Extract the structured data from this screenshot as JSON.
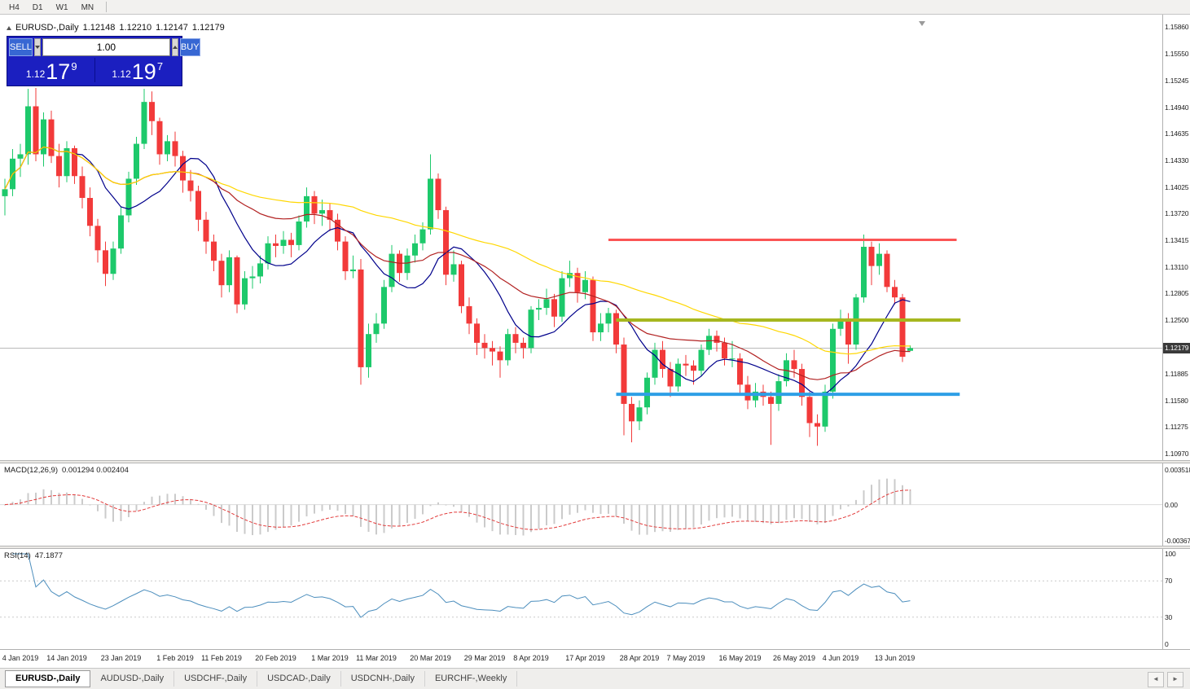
{
  "toolbar": {
    "timeframes": [
      "H4",
      "D1",
      "W1",
      "MN"
    ]
  },
  "chart_header": {
    "instrument": "EURUSD-,Daily",
    "open": "1.12148",
    "high": "1.12210",
    "low": "1.12147",
    "close": "1.12179"
  },
  "trade_panel": {
    "sell_label": "SELL",
    "buy_label": "BUY",
    "volume": "1.00",
    "sell_price": {
      "base": "1.12",
      "pips": "17",
      "point": "9"
    },
    "buy_price": {
      "base": "1.12",
      "pips": "19",
      "point": "7"
    }
  },
  "colors": {
    "bull": "#1dc96b",
    "bear": "#f23a3a",
    "current_price_line": "#b9b9b9",
    "price_badge_bg": "#3a3a3a",
    "macd_histogram": "#cbcbcb",
    "macd_signal": "#e23b3b",
    "rsi_line": "#4c8ebd",
    "indicator_level": "#c9c9c9",
    "trade_panel_bg": "#1b1fc0",
    "trade_panel_button": "#3767d3"
  },
  "chart_data": {
    "type": "candlestick",
    "title": "EURUSD-,Daily",
    "current_price": 1.12179,
    "price_axis": {
      "min": 1.1097,
      "max": 1.1586,
      "current_price_label": "1.12179",
      "ticks": [
        "1.15860",
        "1.15550",
        "1.15245",
        "1.14940",
        "1.14635",
        "1.14330",
        "1.14025",
        "1.13720",
        "1.13415",
        "1.13110",
        "1.12805",
        "1.12500",
        "1.11885",
        "1.11580",
        "1.11275",
        "1.10970"
      ]
    },
    "moving_averages": [
      {
        "period": 10,
        "color": "#00008b"
      },
      {
        "period": 25,
        "color": "#b22222"
      },
      {
        "period": 50,
        "color": "#ffd700"
      }
    ],
    "hlines": [
      {
        "name": "resistance-line",
        "price": 1.1342,
        "color": "#fb5555",
        "width": 3,
        "from_index": 78,
        "to_index": 123
      },
      {
        "name": "pivot-line",
        "price": 1.125,
        "color": "#a6b71f",
        "width": 4,
        "from_index": 79,
        "to_index": 123.5
      },
      {
        "name": "support-line",
        "price": 1.1165,
        "color": "#2e9fe6",
        "width": 4,
        "from_index": 79,
        "to_index": 123.4
      }
    ],
    "date_ticks": [
      {
        "label": "4 Jan 2019",
        "index": 2
      },
      {
        "label": "14 Jan 2019",
        "index": 8
      },
      {
        "label": "23 Jan 2019",
        "index": 15
      },
      {
        "label": "1 Feb 2019",
        "index": 22
      },
      {
        "label": "11 Feb 2019",
        "index": 28
      },
      {
        "label": "20 Feb 2019",
        "index": 35
      },
      {
        "label": "1 Mar 2019",
        "index": 42
      },
      {
        "label": "11 Mar 2019",
        "index": 48
      },
      {
        "label": "20 Mar 2019",
        "index": 55
      },
      {
        "label": "29 Mar 2019",
        "index": 62
      },
      {
        "label": "8 Apr 2019",
        "index": 68
      },
      {
        "label": "17 Apr 2019",
        "index": 75
      },
      {
        "label": "28 Apr 2019",
        "index": 82
      },
      {
        "label": "7 May 2019",
        "index": 88
      },
      {
        "label": "16 May 2019",
        "index": 95
      },
      {
        "label": "26 May 2019",
        "index": 102
      },
      {
        "label": "4 Jun 2019",
        "index": 108
      },
      {
        "label": "13 Jun 2019",
        "index": 115
      }
    ],
    "indicators": {
      "macd": {
        "label": "MACD(12,26,9)",
        "values_label": "0.001294 0.002404",
        "fast": 12,
        "slow": 26,
        "signal": 9,
        "scale_ticks": [
          "0.003518",
          "0.00",
          "-0.00367"
        ]
      },
      "rsi": {
        "label": "RSI(14)",
        "value_label": "47.1877",
        "period": 14,
        "levels": [
          70,
          30
        ],
        "scale_ticks": [
          "100",
          "70",
          "30",
          "0"
        ]
      }
    },
    "candles": [
      [
        1.1392,
        1.1412,
        1.137,
        1.14
      ],
      [
        1.14,
        1.1446,
        1.1392,
        1.1435
      ],
      [
        1.1435,
        1.1452,
        1.1414,
        1.144
      ],
      [
        1.144,
        1.1515,
        1.1428,
        1.1495
      ],
      [
        1.1495,
        1.1516,
        1.1432,
        1.144
      ],
      [
        1.144,
        1.1488,
        1.1426,
        1.148
      ],
      [
        1.148,
        1.149,
        1.143,
        1.1438
      ],
      [
        1.1438,
        1.1452,
        1.1402,
        1.1415
      ],
      [
        1.1415,
        1.1455,
        1.1408,
        1.1447
      ],
      [
        1.1447,
        1.145,
        1.1406,
        1.1415
      ],
      [
        1.1415,
        1.1426,
        1.1378,
        1.139
      ],
      [
        1.139,
        1.1402,
        1.1346,
        1.1358
      ],
      [
        1.1358,
        1.1366,
        1.1316,
        1.133
      ],
      [
        1.133,
        1.134,
        1.1289,
        1.1303
      ],
      [
        1.1303,
        1.134,
        1.1296,
        1.1332
      ],
      [
        1.1332,
        1.138,
        1.1326,
        1.137
      ],
      [
        1.137,
        1.142,
        1.1362,
        1.1412
      ],
      [
        1.1412,
        1.146,
        1.1405,
        1.1452
      ],
      [
        1.1452,
        1.1515,
        1.1446,
        1.15
      ],
      [
        1.15,
        1.1512,
        1.1462,
        1.1478
      ],
      [
        1.1478,
        1.1482,
        1.1428,
        1.144
      ],
      [
        1.144,
        1.1462,
        1.1432,
        1.1455
      ],
      [
        1.1455,
        1.1466,
        1.1426,
        1.1438
      ],
      [
        1.1438,
        1.1444,
        1.1396,
        1.141
      ],
      [
        1.141,
        1.1422,
        1.1386,
        1.1398
      ],
      [
        1.1398,
        1.1404,
        1.1352,
        1.1365
      ],
      [
        1.1365,
        1.1374,
        1.1326,
        1.134
      ],
      [
        1.134,
        1.1348,
        1.1306,
        1.1318
      ],
      [
        1.1318,
        1.1326,
        1.1276,
        1.129
      ],
      [
        1.129,
        1.133,
        1.1282,
        1.1322
      ],
      [
        1.1322,
        1.1324,
        1.1258,
        1.1268
      ],
      [
        1.1268,
        1.1306,
        1.1262,
        1.1298
      ],
      [
        1.1298,
        1.1312,
        1.1286,
        1.13
      ],
      [
        1.13,
        1.1324,
        1.1292,
        1.1315
      ],
      [
        1.1315,
        1.1346,
        1.1308,
        1.1338
      ],
      [
        1.1338,
        1.1348,
        1.1322,
        1.1335
      ],
      [
        1.1335,
        1.1352,
        1.1326,
        1.1342
      ],
      [
        1.1342,
        1.135,
        1.1322,
        1.1336
      ],
      [
        1.1336,
        1.137,
        1.133,
        1.1363
      ],
      [
        1.1363,
        1.1402,
        1.1356,
        1.1392
      ],
      [
        1.1392,
        1.1398,
        1.136,
        1.1372
      ],
      [
        1.1372,
        1.1388,
        1.1358,
        1.1376
      ],
      [
        1.1376,
        1.1384,
        1.1352,
        1.1365
      ],
      [
        1.1365,
        1.1372,
        1.133,
        1.134
      ],
      [
        1.134,
        1.1346,
        1.1296,
        1.1306
      ],
      [
        1.1306,
        1.1324,
        1.1298,
        1.1308
      ],
      [
        1.1308,
        1.132,
        1.1176,
        1.1196
      ],
      [
        1.1196,
        1.1246,
        1.1184,
        1.1234
      ],
      [
        1.1234,
        1.1258,
        1.1224,
        1.1246
      ],
      [
        1.1246,
        1.1296,
        1.124,
        1.1288
      ],
      [
        1.1288,
        1.1336,
        1.1282,
        1.1326
      ],
      [
        1.1326,
        1.133,
        1.1294,
        1.1304
      ],
      [
        1.1304,
        1.1332,
        1.1296,
        1.1324
      ],
      [
        1.1324,
        1.1348,
        1.1316,
        1.1338
      ],
      [
        1.1338,
        1.1362,
        1.133,
        1.1354
      ],
      [
        1.1354,
        1.144,
        1.1348,
        1.1412
      ],
      [
        1.1412,
        1.1418,
        1.1366,
        1.1376
      ],
      [
        1.1376,
        1.138,
        1.129,
        1.1302
      ],
      [
        1.1302,
        1.133,
        1.1294,
        1.1314
      ],
      [
        1.1314,
        1.1318,
        1.1258,
        1.1266
      ],
      [
        1.1266,
        1.1276,
        1.1234,
        1.1246
      ],
      [
        1.1246,
        1.1252,
        1.121,
        1.1224
      ],
      [
        1.1224,
        1.1234,
        1.1206,
        1.1218
      ],
      [
        1.1218,
        1.1226,
        1.1198,
        1.1214
      ],
      [
        1.1214,
        1.122,
        1.1184,
        1.1204
      ],
      [
        1.1204,
        1.124,
        1.1198,
        1.1234
      ],
      [
        1.1234,
        1.1242,
        1.1212,
        1.1224
      ],
      [
        1.1224,
        1.123,
        1.1206,
        1.1218
      ],
      [
        1.1218,
        1.1266,
        1.1212,
        1.1262
      ],
      [
        1.1262,
        1.1274,
        1.125,
        1.1264
      ],
      [
        1.1264,
        1.1286,
        1.1256,
        1.1274
      ],
      [
        1.1274,
        1.128,
        1.1242,
        1.1254
      ],
      [
        1.1254,
        1.1306,
        1.1248,
        1.1298
      ],
      [
        1.1298,
        1.1318,
        1.1288,
        1.1304
      ],
      [
        1.1304,
        1.131,
        1.127,
        1.1282
      ],
      [
        1.1282,
        1.1306,
        1.1274,
        1.1296
      ],
      [
        1.1296,
        1.13,
        1.1226,
        1.1236
      ],
      [
        1.1236,
        1.1258,
        1.1226,
        1.1246
      ],
      [
        1.1246,
        1.1264,
        1.1236,
        1.1258
      ],
      [
        1.1258,
        1.1262,
        1.1212,
        1.1222
      ],
      [
        1.1222,
        1.123,
        1.1118,
        1.1154
      ],
      [
        1.1154,
        1.1162,
        1.111,
        1.1134
      ],
      [
        1.1134,
        1.1158,
        1.1124,
        1.115
      ],
      [
        1.115,
        1.119,
        1.1142,
        1.1184
      ],
      [
        1.1184,
        1.1224,
        1.1176,
        1.1216
      ],
      [
        1.1216,
        1.1226,
        1.1184,
        1.1194
      ],
      [
        1.1194,
        1.1202,
        1.1162,
        1.1174
      ],
      [
        1.1174,
        1.1206,
        1.1168,
        1.12
      ],
      [
        1.12,
        1.121,
        1.1186,
        1.1198
      ],
      [
        1.1198,
        1.1204,
        1.1176,
        1.1192
      ],
      [
        1.1192,
        1.1222,
        1.1186,
        1.1216
      ],
      [
        1.1216,
        1.124,
        1.121,
        1.1232
      ],
      [
        1.1232,
        1.1238,
        1.1214,
        1.1224
      ],
      [
        1.1224,
        1.123,
        1.1198,
        1.1206
      ],
      [
        1.1206,
        1.1226,
        1.1196,
        1.1206
      ],
      [
        1.1206,
        1.1212,
        1.1166,
        1.1176
      ],
      [
        1.1176,
        1.1186,
        1.1148,
        1.1158
      ],
      [
        1.1158,
        1.1178,
        1.115,
        1.1168
      ],
      [
        1.1168,
        1.1176,
        1.1152,
        1.1162
      ],
      [
        1.1162,
        1.1168,
        1.1107,
        1.1154
      ],
      [
        1.1154,
        1.1188,
        1.1146,
        1.118
      ],
      [
        1.118,
        1.1212,
        1.1174,
        1.1204
      ],
      [
        1.1204,
        1.1216,
        1.1184,
        1.1194
      ],
      [
        1.1194,
        1.12,
        1.1152,
        1.1162
      ],
      [
        1.1162,
        1.1168,
        1.1116,
        1.1132
      ],
      [
        1.1132,
        1.1142,
        1.1106,
        1.1128
      ],
      [
        1.1128,
        1.1176,
        1.1122,
        1.1168
      ],
      [
        1.1168,
        1.1246,
        1.116,
        1.124
      ],
      [
        1.124,
        1.1262,
        1.1232,
        1.1252
      ],
      [
        1.1252,
        1.1258,
        1.12,
        1.1222
      ],
      [
        1.1222,
        1.128,
        1.1216,
        1.1276
      ],
      [
        1.1276,
        1.1348,
        1.127,
        1.1334
      ],
      [
        1.1334,
        1.134,
        1.129,
        1.1312
      ],
      [
        1.1312,
        1.1338,
        1.1302,
        1.1326
      ],
      [
        1.1326,
        1.133,
        1.1282,
        1.1288
      ],
      [
        1.1288,
        1.1296,
        1.1268,
        1.1276
      ],
      [
        1.1276,
        1.128,
        1.1202,
        1.1208
      ],
      [
        1.12148,
        1.1221,
        1.12147,
        1.12179
      ]
    ]
  },
  "tab_bar": {
    "tabs": [
      {
        "label": "EURUSD-,Daily",
        "active": true
      },
      {
        "label": "AUDUSD-,Daily",
        "active": false
      },
      {
        "label": "USDCHF-,Daily",
        "active": false
      },
      {
        "label": "USDCAD-,Daily",
        "active": false
      },
      {
        "label": "USDCNH-,Daily",
        "active": false
      },
      {
        "label": "EURCHF-,Weekly",
        "active": false
      }
    ]
  }
}
